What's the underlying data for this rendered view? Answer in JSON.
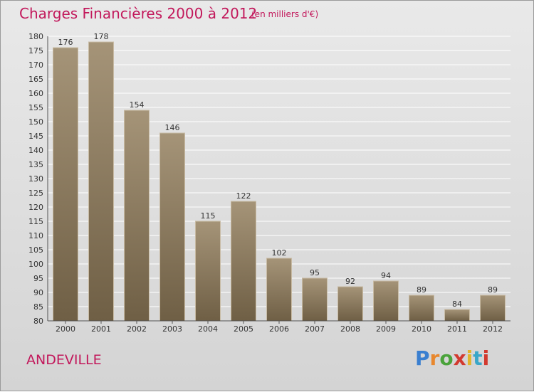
{
  "header": {
    "title": "Charges Financières 2000 à 2012",
    "subtitle": "(en milliers d'€)"
  },
  "footer": {
    "place": "ANDEVILLE",
    "brand": [
      "P",
      "r",
      "o",
      "x",
      "i",
      "t",
      "i"
    ]
  },
  "colors": {
    "title": "#c2185b",
    "bar_top": "#a59478",
    "bar_bottom": "#6f5f45",
    "grid": "#ffffff"
  },
  "chart_data": {
    "type": "bar",
    "title": "Charges Financières 2000 à 2012",
    "subtitle": "(en milliers d'€)",
    "categories": [
      "2000",
      "2001",
      "2002",
      "2003",
      "2004",
      "2005",
      "2006",
      "2007",
      "2008",
      "2009",
      "2010",
      "2011",
      "2012"
    ],
    "values": [
      176,
      178,
      154,
      146,
      115,
      122,
      102,
      95,
      92,
      94,
      89,
      84,
      89
    ],
    "ylim": [
      80,
      180
    ],
    "yticks": [
      80,
      85,
      90,
      95,
      100,
      105,
      110,
      115,
      120,
      125,
      130,
      135,
      140,
      145,
      150,
      155,
      160,
      165,
      170,
      175,
      180
    ],
    "grid": true,
    "legend": "none"
  }
}
